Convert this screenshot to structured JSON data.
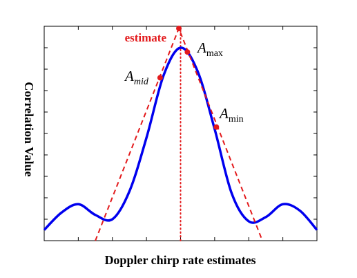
{
  "chart_data": {
    "type": "line",
    "title": "",
    "xlabel": "Doppler chirp rate estimates",
    "ylabel": "Correlation Value",
    "xlim": [
      -4,
      4
    ],
    "ylim": [
      0,
      1
    ],
    "grid": false,
    "legend": "none",
    "series": [
      {
        "name": "",
        "color": "#0000ee",
        "style": "solid",
        "x": [
          -4.0,
          -3.5,
          -3.0,
          -2.5,
          -2.0,
          -1.5,
          -1.0,
          -0.5,
          0.0,
          0.5,
          1.0,
          1.5,
          2.0,
          2.5,
          3.0,
          3.5,
          4.0
        ],
        "y": [
          0.05,
          0.13,
          0.17,
          0.12,
          0.1,
          0.23,
          0.48,
          0.77,
          0.9,
          0.79,
          0.52,
          0.22,
          0.09,
          0.11,
          0.17,
          0.14,
          0.05
        ]
      },
      {
        "name": "",
        "color": "#e31a1c",
        "style": "dashed",
        "x": [
          -2.5,
          -0.05,
          2.4
        ],
        "y": [
          0.0,
          0.99,
          0.0
        ]
      }
    ],
    "vline": {
      "x": 0.0,
      "color": "#e31a1c",
      "style": "dotted"
    },
    "markers": [
      {
        "x": -0.6,
        "y": 0.76,
        "color": "#e31a1c"
      },
      {
        "x": -0.05,
        "y": 0.99,
        "color": "#e31a1c"
      },
      {
        "x": 0.2,
        "y": 0.88,
        "color": "#e31a1c"
      },
      {
        "x": 1.05,
        "y": 0.53,
        "color": "#e31a1c"
      }
    ],
    "annotations": {
      "estimate": "estimate",
      "a_symbol": "A",
      "a_max_sub": "max",
      "a_mid_sub": "mid",
      "a_min_sub": "min"
    }
  }
}
